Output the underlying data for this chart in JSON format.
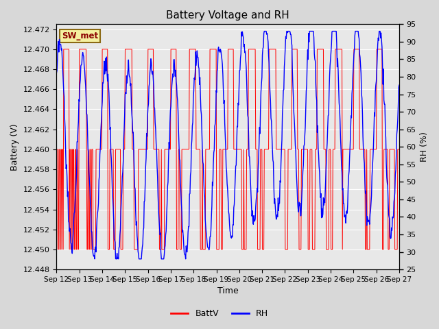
{
  "title": "Battery Voltage and RH",
  "xlabel": "Time",
  "ylabel_left": "Battery (V)",
  "ylabel_right": "RH (%)",
  "x_tick_labels": [
    "Sep 12",
    "Sep 13",
    "Sep 14",
    "Sep 15",
    "Sep 16",
    "Sep 17",
    "Sep 18",
    "Sep 19",
    "Sep 20",
    "Sep 21",
    "Sep 22",
    "Sep 23",
    "Sep 24",
    "Sep 25",
    "Sep 26",
    "Sep 27"
  ],
  "ylim_left": [
    12.448,
    12.4725
  ],
  "ylim_right": [
    25,
    95
  ],
  "yticks_left": [
    12.448,
    12.45,
    12.452,
    12.454,
    12.456,
    12.458,
    12.46,
    12.462,
    12.464,
    12.466,
    12.468,
    12.47,
    12.472
  ],
  "yticks_right": [
    25,
    30,
    35,
    40,
    45,
    50,
    55,
    60,
    65,
    70,
    75,
    80,
    85,
    90,
    95
  ],
  "legend_labels": [
    "BattV",
    "RH"
  ],
  "legend_colors": [
    "red",
    "blue"
  ],
  "station_label": "SW_met",
  "batt_color": "red",
  "rh_color": "blue",
  "bg_color": "#d8d8d8",
  "plot_bg_color": "#e8e8e8",
  "grid_color": "#ffffff",
  "title_fontsize": 11,
  "label_fontsize": 9,
  "tick_fontsize": 8
}
